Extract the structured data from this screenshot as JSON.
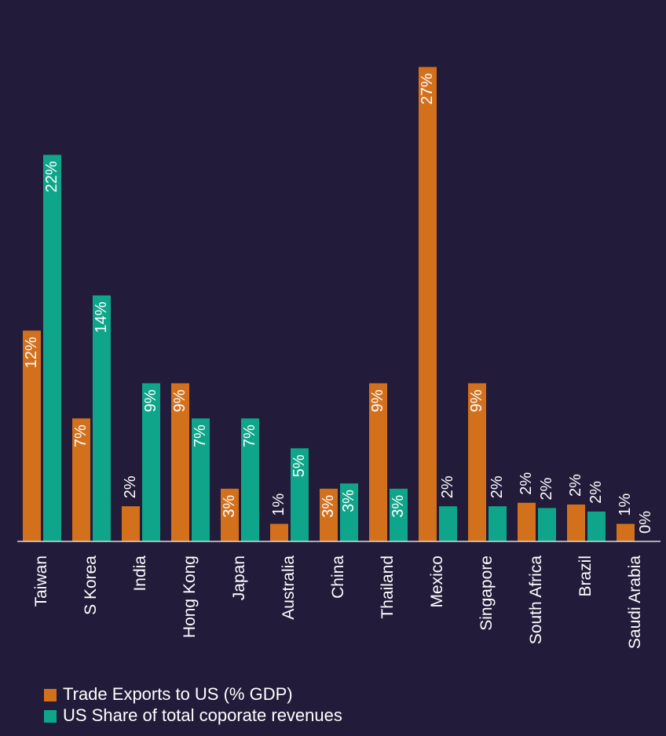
{
  "chart_data": {
    "type": "bar",
    "categories": [
      "Taiwan",
      "S Korea",
      "India",
      "Hong Kong",
      "Japan",
      "Australia",
      "China",
      "Thailand",
      "Mexico",
      "Singapore",
      "South Africa",
      "Brazil",
      "Saudi Arabia"
    ],
    "series": [
      {
        "name": "Trade Exports to US (% GDP)",
        "color": "#d3701c",
        "values": [
          12,
          7,
          2,
          9,
          3,
          1,
          3,
          9,
          27,
          9,
          2.2,
          2.1,
          1
        ],
        "value_labels": [
          "12%",
          "7%",
          "2%",
          "9%",
          "3%",
          "1%",
          "3%",
          "9%",
          "27%",
          "9%",
          "2%",
          "2%",
          "1%"
        ]
      },
      {
        "name": "US Share of total coporate revenues",
        "color": "#0ea58a",
        "values": [
          22,
          14,
          9,
          7,
          7,
          5.3,
          3.3,
          3,
          2,
          2,
          1.9,
          1.7,
          0
        ],
        "value_labels": [
          "22%",
          "14%",
          "9%",
          "7%",
          "7%",
          "5%",
          "3%",
          "3%",
          "2%",
          "2%",
          "2%",
          "2%",
          "0%"
        ]
      }
    ],
    "ylim": [
      0,
      28
    ]
  }
}
